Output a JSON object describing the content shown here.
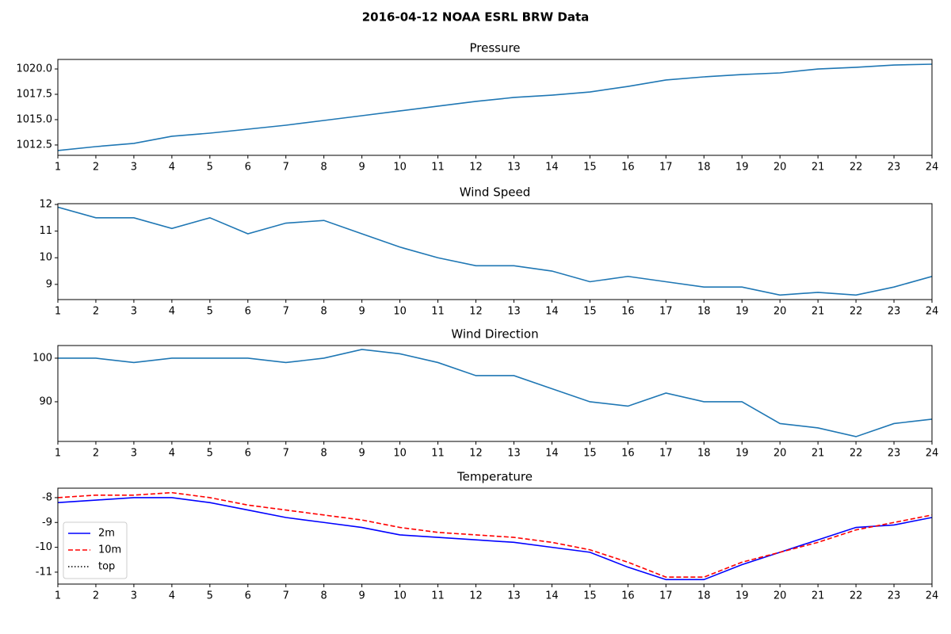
{
  "title": "2016-04-12 NOAA ESRL BRW Data",
  "chart_data": [
    {
      "type": "line",
      "title": "Pressure",
      "x": [
        1,
        2,
        3,
        4,
        5,
        6,
        7,
        8,
        9,
        10,
        11,
        12,
        13,
        14,
        15,
        16,
        17,
        18,
        19,
        20,
        21,
        22,
        23,
        24
      ],
      "series": [
        {
          "name": null,
          "color": "#1f77b4",
          "style": "solid",
          "values": [
            1011.95,
            1012.34,
            1012.66,
            1013.36,
            1013.67,
            1014.06,
            1014.45,
            1014.92,
            1015.39,
            1015.86,
            1016.33,
            1016.8,
            1017.19,
            1017.42,
            1017.73,
            1018.28,
            1018.91,
            1019.22,
            1019.45,
            1019.61,
            1020.0,
            1020.16,
            1020.39,
            1020.47
          ]
        }
      ],
      "xlim": [
        1,
        24
      ],
      "xticks": [
        1,
        2,
        3,
        4,
        5,
        6,
        7,
        8,
        9,
        10,
        11,
        12,
        13,
        14,
        15,
        16,
        17,
        18,
        19,
        20,
        21,
        22,
        23,
        24
      ],
      "ylim": [
        1011.48,
        1020.94
      ],
      "yticks": [
        {
          "value": 1012.5,
          "label": "1012.5"
        },
        {
          "value": 1015,
          "label": "1015.0"
        },
        {
          "value": 1017.5,
          "label": "1017.5"
        },
        {
          "value": 1020,
          "label": "1020.0"
        }
      ]
    },
    {
      "type": "line",
      "title": "Wind Speed",
      "x": [
        1,
        2,
        3,
        4,
        5,
        6,
        7,
        8,
        9,
        10,
        11,
        12,
        13,
        14,
        15,
        16,
        17,
        18,
        19,
        20,
        21,
        22,
        23,
        24
      ],
      "series": [
        {
          "name": null,
          "color": "#1f77b4",
          "style": "solid",
          "values": [
            11.9,
            11.5,
            11.5,
            11.1,
            11.5,
            10.9,
            11.3,
            11.4,
            10.9,
            10.4,
            10.0,
            9.7,
            9.7,
            9.5,
            9.1,
            9.3,
            9.1,
            8.9,
            8.9,
            8.6,
            8.7,
            8.6,
            8.9,
            9.3
          ]
        }
      ],
      "xlim": [
        1,
        24
      ],
      "xticks": [
        1,
        2,
        3,
        4,
        5,
        6,
        7,
        8,
        9,
        10,
        11,
        12,
        13,
        14,
        15,
        16,
        17,
        18,
        19,
        20,
        21,
        22,
        23,
        24
      ],
      "ylim": [
        8.43,
        12.03
      ],
      "yticks": [
        9,
        10,
        11,
        12
      ]
    },
    {
      "type": "line",
      "title": "Wind Direction",
      "x": [
        1,
        2,
        3,
        4,
        5,
        6,
        7,
        8,
        9,
        10,
        11,
        12,
        13,
        14,
        15,
        16,
        17,
        18,
        19,
        20,
        21,
        22,
        23,
        24
      ],
      "series": [
        {
          "name": null,
          "color": "#1f77b4",
          "style": "solid",
          "values": [
            100,
            100,
            99,
            100,
            100,
            100,
            99,
            100,
            102,
            101,
            99,
            96,
            96,
            93,
            90,
            89,
            92,
            90,
            90,
            85,
            84,
            82,
            85,
            86
          ]
        }
      ],
      "xlim": [
        1,
        24
      ],
      "xticks": [
        1,
        2,
        3,
        4,
        5,
        6,
        7,
        8,
        9,
        10,
        11,
        12,
        13,
        14,
        15,
        16,
        17,
        18,
        19,
        20,
        21,
        22,
        23,
        24
      ],
      "ylim": [
        80.9,
        102.9
      ],
      "yticks": [
        90,
        100
      ]
    },
    {
      "type": "line",
      "title": "Temperature",
      "x": [
        1,
        2,
        3,
        4,
        5,
        6,
        7,
        8,
        9,
        10,
        11,
        12,
        13,
        14,
        15,
        16,
        17,
        18,
        19,
        20,
        21,
        22,
        23,
        24
      ],
      "series": [
        {
          "name": "2m",
          "color": "#0000ff",
          "style": "solid",
          "values": [
            -8.2,
            -8.1,
            -8.0,
            -8.0,
            -8.2,
            -8.5,
            -8.8,
            -9.0,
            -9.2,
            -9.5,
            -9.6,
            -9.7,
            -9.8,
            -10.0,
            -10.2,
            -10.8,
            -11.3,
            -11.3,
            -10.7,
            -10.2,
            -9.7,
            -9.2,
            -9.1,
            -8.8
          ]
        },
        {
          "name": "10m",
          "color": "#ff0000",
          "style": "dashed",
          "values": [
            -8.0,
            -7.9,
            -7.9,
            -7.8,
            -8.0,
            -8.3,
            -8.5,
            -8.7,
            -8.9,
            -9.2,
            -9.4,
            -9.5,
            -9.6,
            -9.8,
            -10.1,
            -10.6,
            -11.2,
            -11.2,
            -10.6,
            -10.2,
            -9.8,
            -9.3,
            -9.0,
            -8.7
          ]
        },
        {
          "name": "top",
          "color": "#000000",
          "style": "dotted",
          "values": [
            null,
            null,
            null,
            null,
            null,
            null,
            null,
            null,
            null,
            null,
            null,
            null,
            null,
            null,
            null,
            null,
            null,
            null,
            null,
            null,
            null,
            null,
            null,
            null
          ]
        }
      ],
      "xlim": [
        1,
        24
      ],
      "xticks": [
        1,
        2,
        3,
        4,
        5,
        6,
        7,
        8,
        9,
        10,
        11,
        12,
        13,
        14,
        15,
        16,
        17,
        18,
        19,
        20,
        21,
        22,
        23,
        24
      ],
      "ylim": [
        -11.48,
        -7.62
      ],
      "yticks": [
        -11,
        -10,
        -9,
        -8
      ],
      "legend": "lower left"
    }
  ]
}
